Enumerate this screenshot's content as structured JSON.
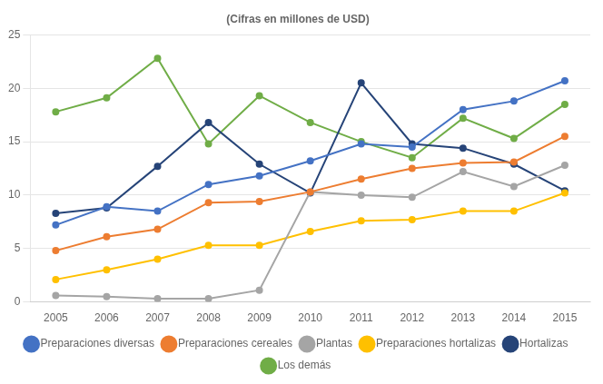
{
  "chart_data": {
    "type": "line",
    "title": "(Cifras en millones de USD)",
    "x": [
      2005,
      2006,
      2007,
      2008,
      2009,
      2010,
      2011,
      2012,
      2013,
      2014,
      2015
    ],
    "series": [
      {
        "name": "Preparaciones diversas",
        "color": "#4472C4",
        "marker": "circle",
        "values": [
          7.2,
          8.9,
          8.5,
          11.0,
          11.8,
          13.2,
          14.8,
          14.5,
          18.0,
          18.8,
          20.7
        ]
      },
      {
        "name": "Preparaciones cereales",
        "color": "#ED7D31",
        "marker": "circle",
        "values": [
          4.8,
          6.1,
          6.8,
          9.3,
          9.4,
          10.3,
          11.5,
          12.5,
          13.0,
          13.1,
          15.5
        ]
      },
      {
        "name": "Plantas",
        "color": "#A5A5A5",
        "marker": "circle",
        "values": [
          0.6,
          0.5,
          0.3,
          0.3,
          1.1,
          10.3,
          10.0,
          9.8,
          12.2,
          10.8,
          12.8
        ]
      },
      {
        "name": "Preparaciones hortalizas",
        "color": "#FFC000",
        "marker": "circle",
        "values": [
          2.1,
          3.0,
          4.0,
          5.3,
          5.3,
          6.6,
          7.6,
          7.7,
          8.5,
          8.5,
          10.2
        ]
      },
      {
        "name": "Hortalizas",
        "color": "#264478",
        "marker": "circle",
        "values": [
          8.3,
          8.8,
          12.7,
          16.8,
          12.9,
          10.2,
          20.5,
          14.8,
          14.4,
          12.9,
          10.4
        ]
      },
      {
        "name": "Los demás",
        "color": "#70AD47",
        "marker": "circle",
        "values": [
          17.8,
          19.1,
          22.8,
          14.8,
          19.3,
          16.8,
          15.0,
          13.5,
          17.2,
          15.3,
          18.5
        ]
      }
    ],
    "xlim": [
      2004.5,
      2015.5
    ],
    "xticks": [
      2005,
      2006,
      2007,
      2008,
      2009,
      2010,
      2011,
      2012,
      2013,
      2014,
      2015
    ],
    "ylim": [
      0,
      25
    ],
    "yticks": [
      0,
      5,
      10,
      15,
      20,
      25
    ],
    "grid": true,
    "legend": "bottom"
  }
}
